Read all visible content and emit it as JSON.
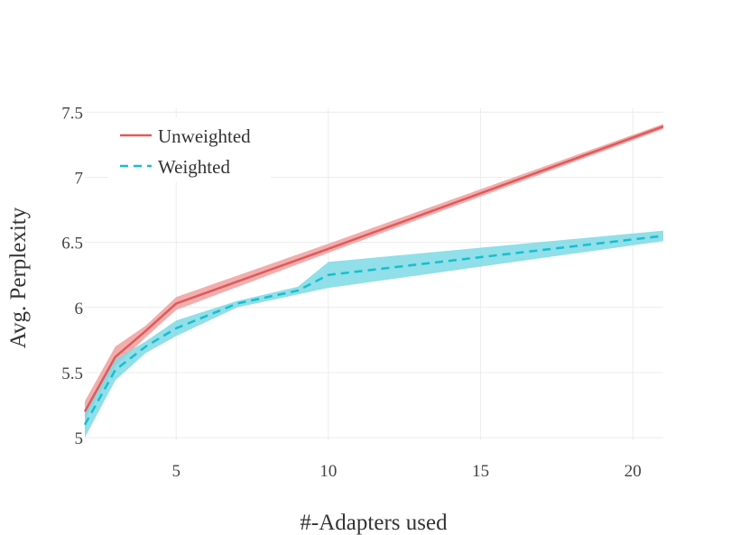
{
  "chart_data": {
    "type": "line",
    "title": "",
    "xlabel": "#-Adapters used",
    "ylabel": "Avg. Perplexity",
    "xlim": [
      2,
      21
    ],
    "ylim": [
      4.98,
      7.53
    ],
    "xticks": [
      5,
      10,
      15,
      20
    ],
    "yticks": [
      5,
      5.5,
      6,
      6.5,
      7,
      7.5
    ],
    "ytick_labels": [
      "5",
      "5.5",
      "6",
      "6.5",
      "7",
      "7.5"
    ],
    "grid": true,
    "legend_position": "top-left",
    "series": [
      {
        "name": "Unweighted",
        "color": "#e05a5a",
        "band_color": "#f0a0a0",
        "line_style": "solid",
        "x": [
          2,
          3,
          4,
          5,
          10,
          21
        ],
        "y": [
          5.2,
          5.62,
          5.82,
          6.03,
          6.45,
          7.39
        ],
        "lower": [
          5.14,
          5.55,
          5.77,
          5.98,
          6.42,
          7.37
        ],
        "upper": [
          5.28,
          5.7,
          5.86,
          6.08,
          6.49,
          7.41
        ]
      },
      {
        "name": "Weighted",
        "color": "#17becf",
        "band_color": "#7dd9e5",
        "line_style": "dashed",
        "x": [
          2,
          3,
          4,
          5,
          7,
          9,
          10,
          21
        ],
        "y": [
          5.1,
          5.52,
          5.7,
          5.84,
          6.03,
          6.13,
          6.25,
          6.55
        ],
        "lower": [
          5.0,
          5.44,
          5.65,
          5.78,
          6.0,
          6.1,
          6.15,
          6.51
        ],
        "upper": [
          5.2,
          5.6,
          5.74,
          5.9,
          6.05,
          6.16,
          6.35,
          6.59
        ]
      }
    ]
  }
}
